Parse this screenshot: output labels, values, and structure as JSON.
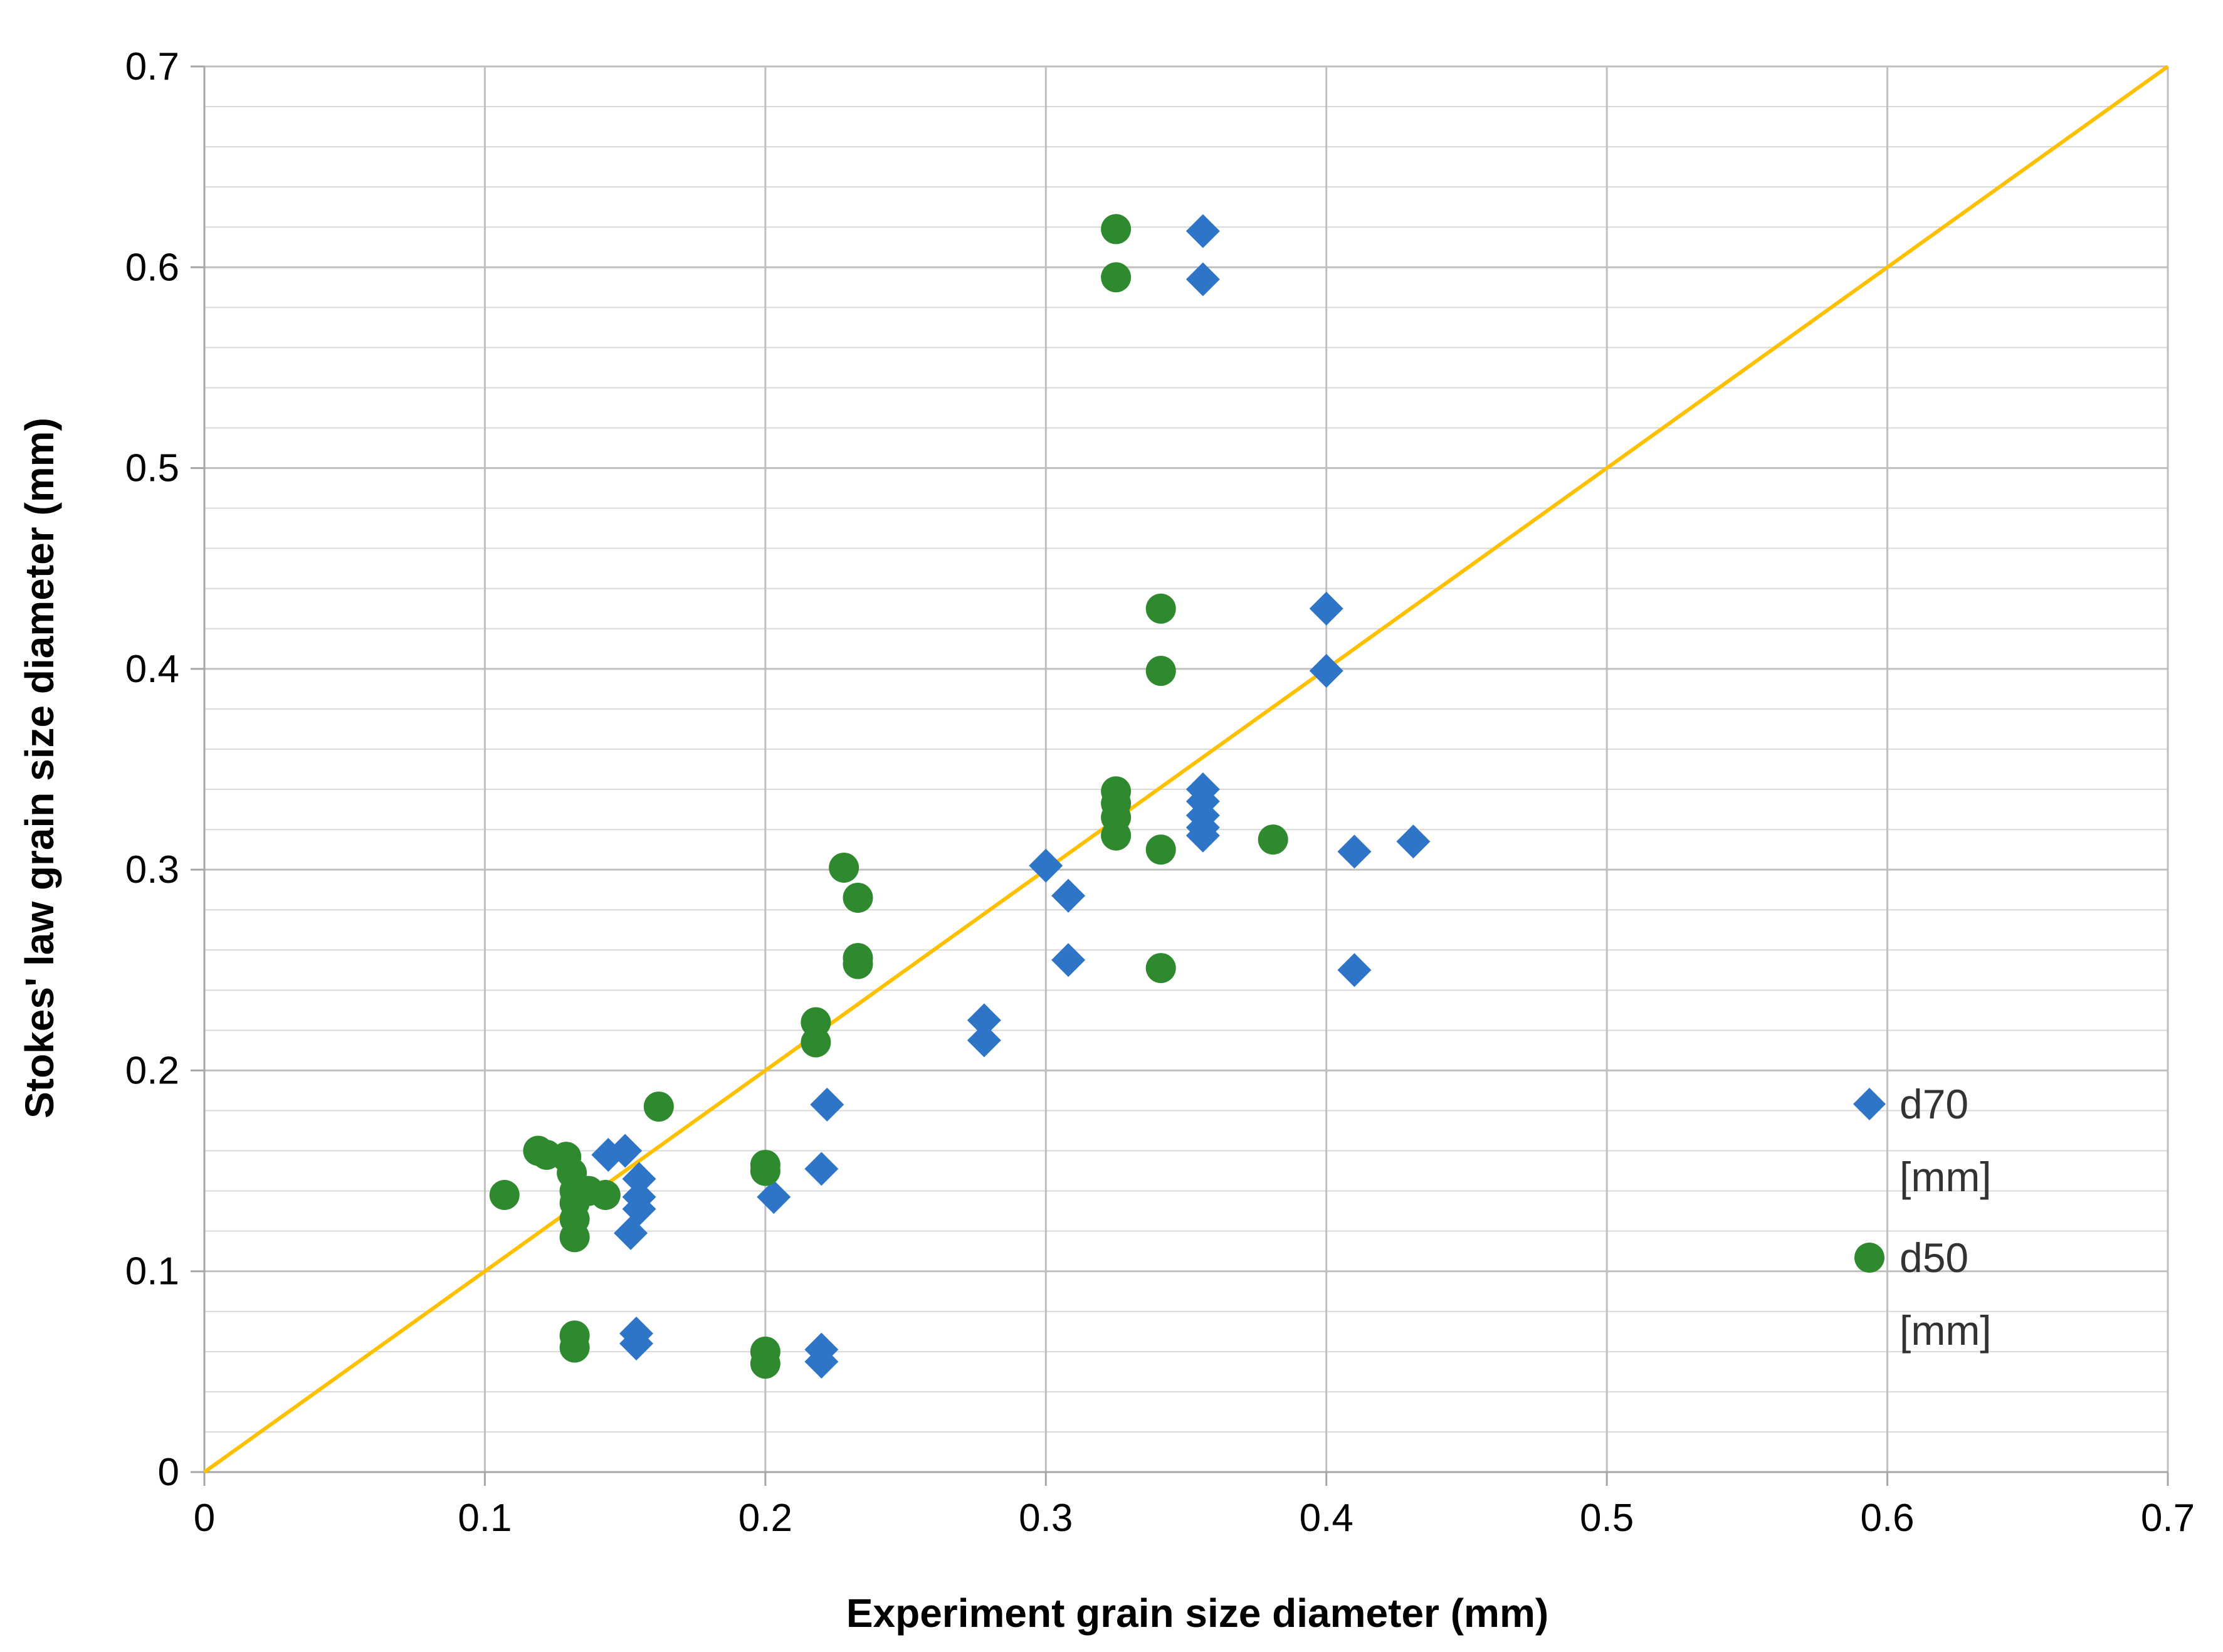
{
  "chart_data": {
    "type": "scatter",
    "title": "",
    "xlabel": "Experiment grain size diameter (mm)",
    "ylabel": "Stokes' law grain size diameter (mm)",
    "xlim": [
      0,
      0.7
    ],
    "ylim": [
      0,
      0.7
    ],
    "x_ticks": [
      "0",
      "0.1",
      "0.2",
      "0.3",
      "0.4",
      "0.5",
      "0.6",
      "0.7"
    ],
    "y_ticks": [
      "0",
      "0.1",
      "0.2",
      "0.3",
      "0.4",
      "0.5",
      "0.6",
      "0.7"
    ],
    "minor_gridline_step": 0.02,
    "grid": true,
    "legend_position": "right",
    "reference_line": {
      "name": "1:1 line",
      "x": [
        0,
        0.7
      ],
      "y": [
        0,
        0.7
      ],
      "color": "#FFC000"
    },
    "series": [
      {
        "name": "d70",
        "unit": "[mm]",
        "marker": "diamond",
        "color": "#2E75C8",
        "points": [
          [
            0.144,
            0.158
          ],
          [
            0.15,
            0.16
          ],
          [
            0.155,
            0.146
          ],
          [
            0.155,
            0.137
          ],
          [
            0.155,
            0.131
          ],
          [
            0.152,
            0.119
          ],
          [
            0.154,
            0.069
          ],
          [
            0.154,
            0.064
          ],
          [
            0.203,
            0.137
          ],
          [
            0.22,
            0.151
          ],
          [
            0.222,
            0.183
          ],
          [
            0.22,
            0.061
          ],
          [
            0.22,
            0.055
          ],
          [
            0.278,
            0.225
          ],
          [
            0.278,
            0.215
          ],
          [
            0.3,
            0.302
          ],
          [
            0.308,
            0.287
          ],
          [
            0.308,
            0.255
          ],
          [
            0.356,
            0.618
          ],
          [
            0.356,
            0.594
          ],
          [
            0.356,
            0.34
          ],
          [
            0.356,
            0.334
          ],
          [
            0.356,
            0.327
          ],
          [
            0.356,
            0.321
          ],
          [
            0.356,
            0.317
          ],
          [
            0.4,
            0.43
          ],
          [
            0.4,
            0.399
          ],
          [
            0.41,
            0.309
          ],
          [
            0.41,
            0.25
          ],
          [
            0.431,
            0.314
          ]
        ]
      },
      {
        "name": "d50",
        "unit": "[mm]",
        "marker": "circle",
        "color": "#2F8A2F",
        "points": [
          [
            0.107,
            0.138
          ],
          [
            0.119,
            0.16
          ],
          [
            0.122,
            0.158
          ],
          [
            0.129,
            0.157
          ],
          [
            0.131,
            0.149
          ],
          [
            0.132,
            0.14
          ],
          [
            0.132,
            0.134
          ],
          [
            0.132,
            0.126
          ],
          [
            0.132,
            0.117
          ],
          [
            0.137,
            0.14
          ],
          [
            0.143,
            0.138
          ],
          [
            0.132,
            0.068
          ],
          [
            0.132,
            0.062
          ],
          [
            0.162,
            0.182
          ],
          [
            0.2,
            0.153
          ],
          [
            0.2,
            0.15
          ],
          [
            0.2,
            0.06
          ],
          [
            0.2,
            0.054
          ],
          [
            0.218,
            0.224
          ],
          [
            0.218,
            0.214
          ],
          [
            0.228,
            0.301
          ],
          [
            0.233,
            0.286
          ],
          [
            0.233,
            0.256
          ],
          [
            0.233,
            0.253
          ],
          [
            0.325,
            0.619
          ],
          [
            0.325,
            0.595
          ],
          [
            0.325,
            0.339
          ],
          [
            0.325,
            0.333
          ],
          [
            0.325,
            0.326
          ],
          [
            0.325,
            0.317
          ],
          [
            0.341,
            0.43
          ],
          [
            0.341,
            0.399
          ],
          [
            0.341,
            0.31
          ],
          [
            0.341,
            0.251
          ],
          [
            0.381,
            0.315
          ]
        ]
      }
    ]
  }
}
